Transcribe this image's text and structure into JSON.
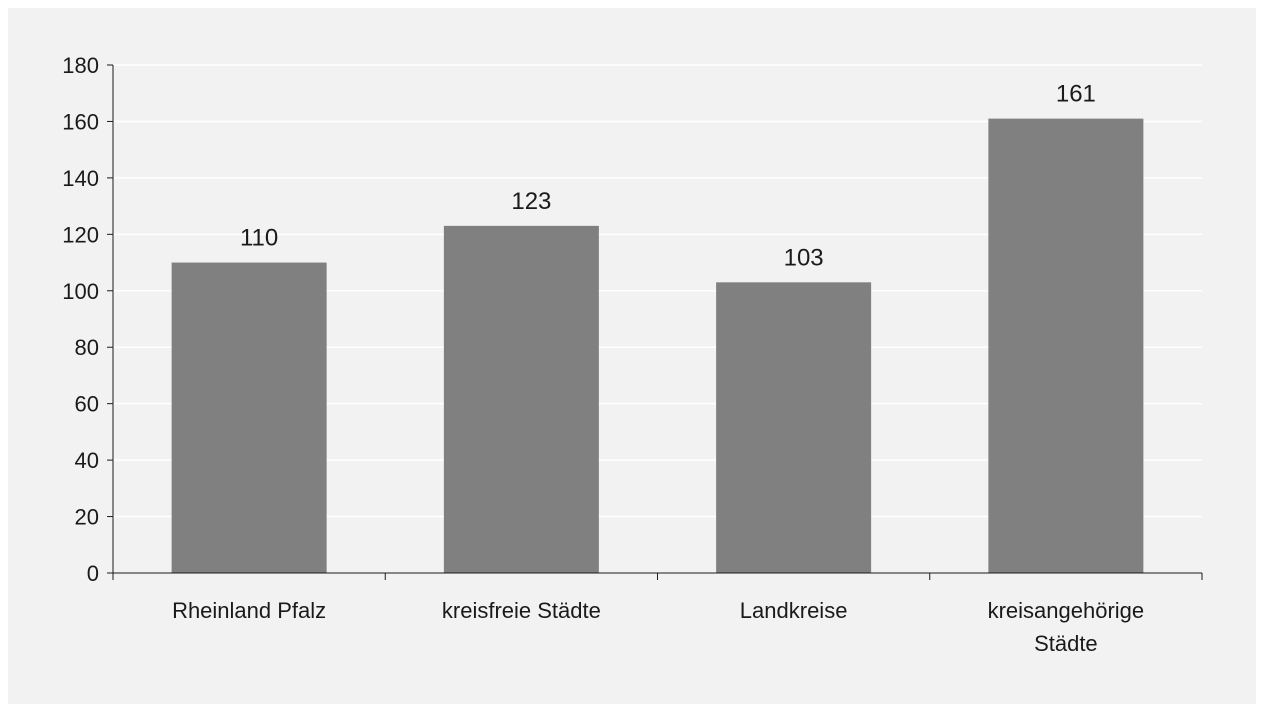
{
  "chart_data": {
    "type": "bar",
    "categories": [
      "Rheinland Pfalz",
      "kreisfreie Städte",
      "Landkreise",
      "kreisangehörige Städte"
    ],
    "values": [
      110,
      123,
      103,
      161
    ],
    "data_labels": [
      "110",
      "123",
      "103",
      "161"
    ],
    "y_ticks": [
      "0",
      "20",
      "40",
      "60",
      "80",
      "100",
      "120",
      "140",
      "160",
      "180"
    ],
    "ylim": [
      0,
      180
    ],
    "grid": true,
    "legend": "none",
    "bar_color": "#808080",
    "background_color": "#f2f2f2",
    "gridline_color": "#ffffff"
  }
}
